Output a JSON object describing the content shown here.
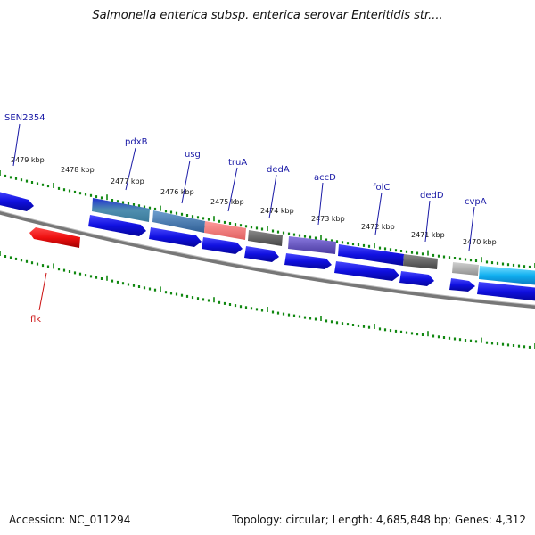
{
  "title": "Salmonella enterica subsp. enterica serovar Enteritidis str....",
  "footer": {
    "accession": "Accession: NC_011294",
    "topology": "Topology: circular; Length: 4,685,848 bp; Genes: 4,312"
  },
  "colors": {
    "forward": "#1111dd",
    "reverse": "#ee1111",
    "ruler": "#118811",
    "backbone": "#808080",
    "label_forward": "#1a1aa6",
    "label_reverse": "#cc1111"
  },
  "kbp_labels": [
    "2479 kbp",
    "2478 kbp",
    "2477 kbp",
    "2476 kbp",
    "2475 kbp",
    "2474 kbp",
    "2473 kbp",
    "2472 kbp",
    "2471 kbp",
    "2470 kbp"
  ],
  "gene_labels": [
    {
      "name": "SEN2354",
      "strand": "forward"
    },
    {
      "name": "pdxB",
      "strand": "forward"
    },
    {
      "name": "usg",
      "strand": "forward"
    },
    {
      "name": "truA",
      "strand": "forward"
    },
    {
      "name": "dedA",
      "strand": "forward"
    },
    {
      "name": "accD",
      "strand": "forward"
    },
    {
      "name": "folC",
      "strand": "forward"
    },
    {
      "name": "dedD",
      "strand": "forward"
    },
    {
      "name": "cvpA",
      "strand": "forward"
    },
    {
      "name": "flk",
      "strand": "reverse"
    }
  ]
}
